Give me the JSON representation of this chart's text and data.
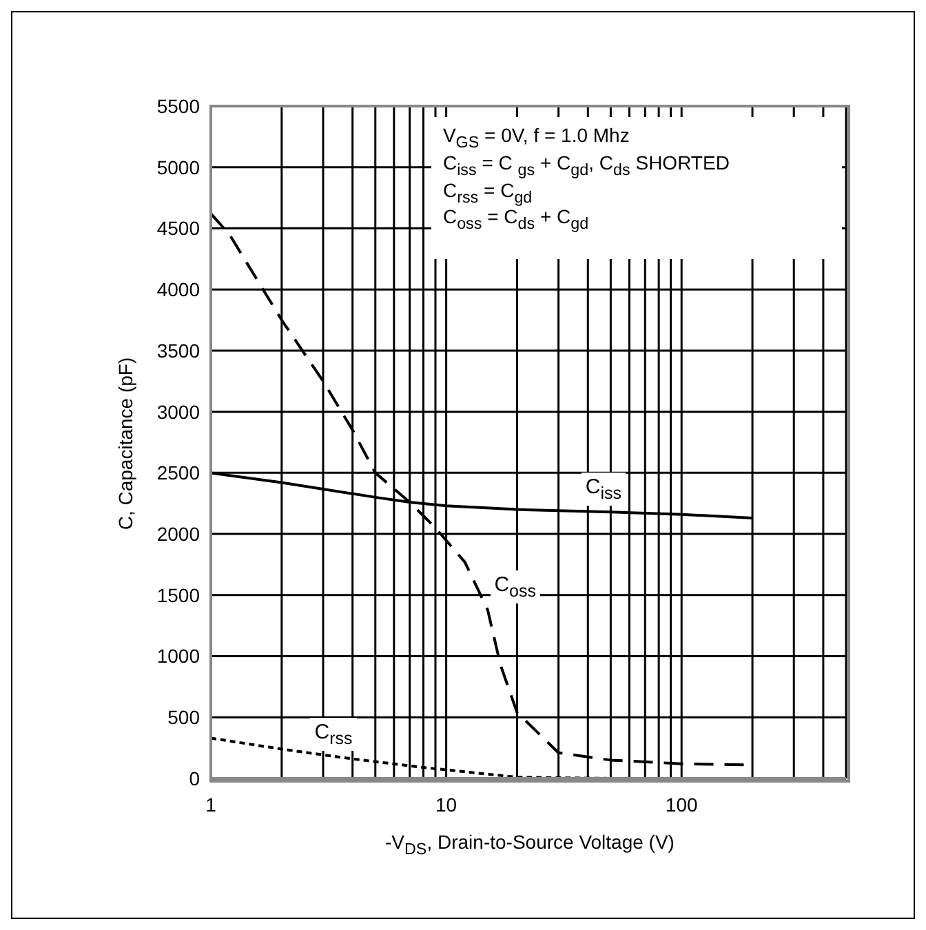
{
  "chart_data": {
    "type": "line",
    "xlabel": "-V$_{DS}$, Drain-to-Source Voltage (V)",
    "ylabel": "C, Capacitance (pF)",
    "log": "x",
    "xlim": [
      1,
      500
    ],
    "xticks": [
      1,
      {
        "value": 2,
        "label": null
      },
      {
        "value": 3,
        "label": null
      },
      {
        "value": 4,
        "label": null
      },
      {
        "value": 5,
        "label": null
      },
      {
        "value": 6,
        "label": null
      },
      {
        "value": 7,
        "label": null
      },
      {
        "value": 8,
        "label": null
      },
      {
        "value": 9,
        "label": null
      },
      10,
      {
        "value": 20,
        "label": null
      },
      {
        "value": 30,
        "label": null
      },
      {
        "value": 40,
        "label": null
      },
      {
        "value": 50,
        "label": null
      },
      {
        "value": 60,
        "label": null
      },
      {
        "value": 70,
        "label": null
      },
      {
        "value": 80,
        "label": null
      },
      {
        "value": 90,
        "label": null
      },
      100,
      {
        "value": 200,
        "label": null
      },
      {
        "value": 300,
        "label": null
      },
      {
        "value": 400,
        "label": null
      },
      {
        "value": 500,
        "label": null
      }
    ],
    "ylim": [
      0,
      5500
    ],
    "yticks": [
      0,
      500,
      1000,
      1500,
      2000,
      2500,
      3000,
      3500,
      4000,
      4500,
      5000,
      5500
    ],
    "grid": true,
    "legend": false,
    "marker": "none",
    "series": [
      {
        "color": "#000000",
        "line_style": "solid",
        "x": [
          1,
          2,
          5,
          7,
          10,
          20,
          50,
          100,
          200
        ],
        "values": [
          2500,
          2420,
          2300,
          2260,
          2230,
          2200,
          2180,
          2160,
          2130
        ]
      },
      {
        "color": "#000000",
        "line_style": "dashed",
        "x": [
          1,
          1.2,
          2,
          3,
          4,
          5,
          7,
          9,
          12,
          15,
          17,
          20,
          30,
          50,
          100,
          200
        ],
        "values": [
          4620,
          4450,
          3750,
          3250,
          2850,
          2500,
          2260,
          2050,
          1770,
          1380,
          930,
          540,
          210,
          150,
          120,
          110
        ]
      },
      {
        "color": "#000000",
        "line_style": "dotted",
        "x": [
          1,
          2,
          4,
          8,
          20,
          50,
          200
        ],
        "values": [
          330,
          240,
          160,
          90,
          10,
          0,
          0
        ]
      }
    ],
    "annotations": [
      "V$_{GS}$ = 0V, f = 1.0 Mhz",
      "C$_{iss}$ = C $_{gs}$ + C$_{gd}$, C$_{ds}$ SHORTED",
      "C$_{rss}$ = C$_{gd}$",
      "C$_{oss}$ = C$_{ds}$ + C$_{gd}$",
      {
        "text": "C$_{iss}$",
        "x": 35,
        "y": 2200
      },
      {
        "text": "C$_{oss}$",
        "x": 14.4,
        "y": 1400
      },
      {
        "text": "C$_{rss}$",
        "x": 2.5,
        "y": 200
      }
    ]
  }
}
